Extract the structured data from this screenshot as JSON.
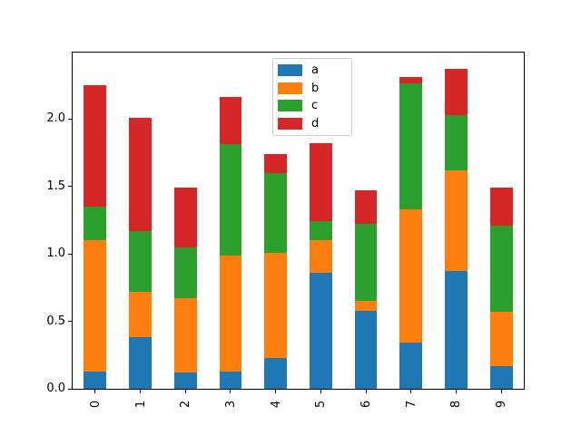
{
  "figure": {
    "background_color": "#ffffff",
    "spine_color": "#000000",
    "tick_color": "#000000",
    "text_color": "#000000",
    "legend_border_color": "#cccccc",
    "legend_background_color": "#ffffff"
  },
  "chart_data": {
    "type": "bar",
    "stacked": true,
    "title": "",
    "xlabel": "",
    "ylabel": "",
    "categories": [
      "0",
      "1",
      "2",
      "3",
      "4",
      "5",
      "6",
      "7",
      "8",
      "9"
    ],
    "series": [
      {
        "name": "a",
        "color": "#1f77b4",
        "values": [
          0.13,
          0.38,
          0.12,
          0.13,
          0.23,
          0.86,
          0.58,
          0.34,
          0.87,
          0.17
        ]
      },
      {
        "name": "b",
        "color": "#ff7f0e",
        "values": [
          0.97,
          0.34,
          0.55,
          0.86,
          0.78,
          0.24,
          0.07,
          0.99,
          0.75,
          0.4
        ]
      },
      {
        "name": "c",
        "color": "#2ca02c",
        "values": [
          0.25,
          0.45,
          0.38,
          0.82,
          0.59,
          0.14,
          0.57,
          0.93,
          0.41,
          0.64
        ]
      },
      {
        "name": "d",
        "color": "#d62728",
        "values": [
          0.9,
          0.84,
          0.44,
          0.35,
          0.14,
          0.58,
          0.25,
          0.05,
          0.34,
          0.28
        ]
      }
    ],
    "bar_totals": [
      2.25,
      2.01,
      1.49,
      2.16,
      1.74,
      1.82,
      1.47,
      2.31,
      2.37,
      1.49
    ],
    "yticks": [
      0.0,
      0.5,
      1.0,
      1.5,
      2.0
    ],
    "ytick_labels": [
      "0.0",
      "0.5",
      "1.0",
      "1.5",
      "2.0"
    ],
    "ylim": [
      0,
      2.49
    ],
    "grid": false,
    "bar_rel_width": 0.5,
    "xtick_rotation_deg": 90,
    "legend": {
      "position": "upper-center",
      "labels": [
        "a",
        "b",
        "c",
        "d"
      ]
    }
  }
}
